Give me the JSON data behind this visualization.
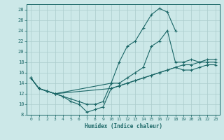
{
  "xlabel": "Humidex (Indice chaleur)",
  "xlim": [
    -0.5,
    23.5
  ],
  "ylim": [
    8,
    29
  ],
  "xticks": [
    0,
    1,
    2,
    3,
    4,
    5,
    6,
    7,
    8,
    9,
    10,
    11,
    12,
    13,
    14,
    15,
    16,
    17,
    18,
    19,
    20,
    21,
    22,
    23
  ],
  "yticks": [
    8,
    10,
    12,
    14,
    16,
    18,
    20,
    22,
    24,
    26,
    28
  ],
  "background_color": "#cce8e8",
  "grid_color": "#aacccc",
  "line_color": "#1a6666",
  "lines": [
    {
      "x": [
        0,
        1,
        2,
        3,
        4,
        5,
        6,
        7,
        8,
        9,
        10,
        11,
        12,
        13,
        14,
        15,
        16,
        17,
        18
      ],
      "y": [
        15,
        13,
        12.5,
        12,
        11.5,
        11,
        10.5,
        10,
        10,
        10.5,
        14,
        18,
        21,
        22,
        24.5,
        27,
        28.2,
        27.5,
        24
      ]
    },
    {
      "x": [
        0,
        1,
        2,
        3,
        10,
        11,
        12,
        13,
        14,
        15,
        16,
        17,
        18,
        19,
        20,
        21,
        22,
        23
      ],
      "y": [
        15,
        13,
        12.5,
        12,
        14,
        14,
        15,
        16,
        17,
        21,
        22,
        24,
        18,
        18,
        18.5,
        18,
        18,
        18
      ]
    },
    {
      "x": [
        0,
        1,
        2,
        3,
        10,
        11,
        12,
        13,
        14,
        15,
        16,
        17,
        18,
        19,
        20,
        21,
        22,
        23
      ],
      "y": [
        15,
        13,
        12.5,
        12,
        13,
        13.5,
        14,
        14.5,
        15,
        15.5,
        16,
        16.5,
        17,
        17.5,
        17.5,
        18,
        18.5,
        18.5
      ]
    },
    {
      "x": [
        0,
        1,
        2,
        3,
        4,
        5,
        6,
        7,
        8,
        9,
        10,
        11,
        12,
        13,
        14,
        15,
        16,
        17,
        18,
        19,
        20,
        21,
        22,
        23
      ],
      "y": [
        15,
        13,
        12.5,
        12,
        11.5,
        10.5,
        10,
        8.5,
        9,
        9.5,
        13,
        13.5,
        14,
        14.5,
        15,
        15.5,
        16,
        16.5,
        17,
        16.5,
        16.5,
        17,
        17.5,
        17.5
      ]
    }
  ]
}
